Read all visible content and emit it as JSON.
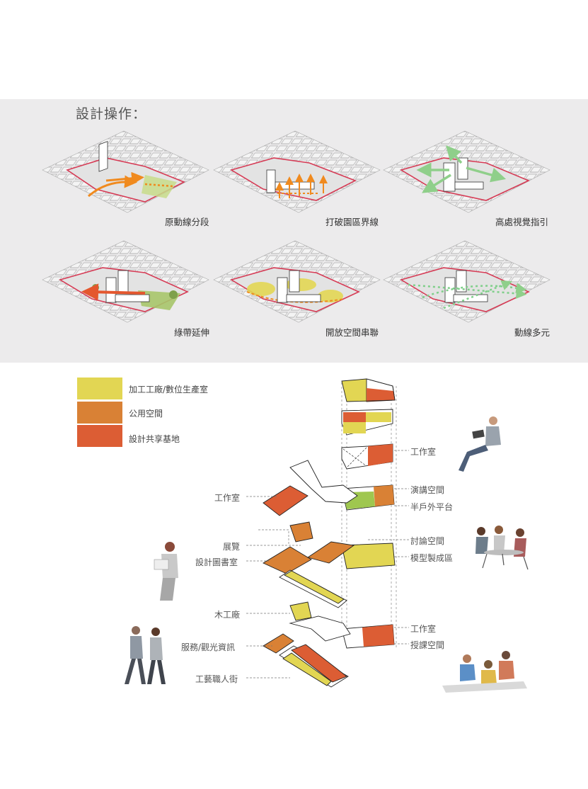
{
  "panel": {
    "title": "設計操作：",
    "captions": [
      "原動線分段",
      "打破園區界線",
      "高處視覺指引",
      "綠帶延伸",
      "開放空間串聯",
      "動線多元"
    ]
  },
  "legend": [
    {
      "label": "加工工廠/數位生產室",
      "color": "#e2d653"
    },
    {
      "label": "公用空間",
      "color": "#d98135"
    },
    {
      "label": "設計共享基地",
      "color": "#dc5d34"
    }
  ],
  "labels_left": [
    "工作室",
    "展覽",
    "設計圖書室",
    "木工廠",
    "服務/觀光資訊",
    "工藝職人街"
  ],
  "labels_right": [
    "工作室",
    "演講空間",
    "半戶外平台",
    "討論空間",
    "模型製成區",
    "工作室",
    "授課空間"
  ],
  "colors": {
    "yellow": "#e2d653",
    "orange": "#d98135",
    "red": "#dc5d34",
    "green": "#9fc74f",
    "site_boundary": "#d63b55",
    "arrow_orange": "#f08a1e",
    "arrow_green": "#8fcf8a"
  }
}
